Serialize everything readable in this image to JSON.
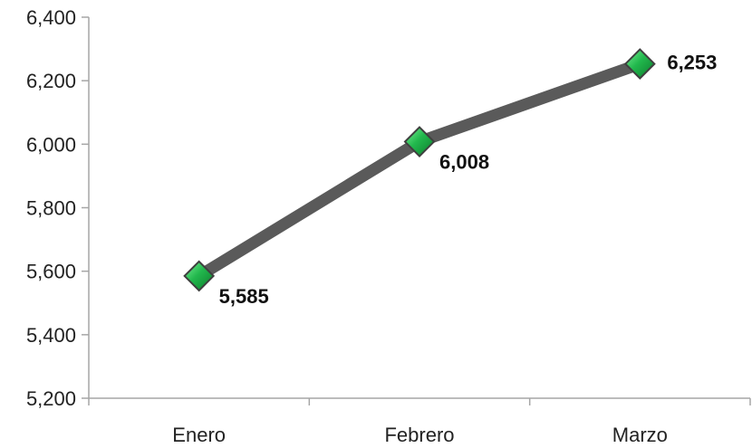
{
  "chart_data": {
    "type": "line",
    "categories": [
      "Enero",
      "Febrero",
      "Marzo"
    ],
    "series": [
      {
        "values": [
          5585,
          6008,
          6253
        ],
        "data_labels": [
          "5,585",
          "6,008",
          "6,253"
        ],
        "line_color": "#5a5a5a",
        "marker": "diamond",
        "marker_color": "#1fb04a"
      }
    ],
    "ylim": [
      5200,
      6400
    ],
    "y_ticks": [
      5200,
      5400,
      5600,
      5800,
      6000,
      6200,
      6400
    ],
    "y_tick_labels": [
      "5,200",
      "5,400",
      "5,600",
      "5,800",
      "6,000",
      "6,200",
      "6,400"
    ],
    "grid": false,
    "legend": "none",
    "axis_color": "#a6a6a6"
  }
}
